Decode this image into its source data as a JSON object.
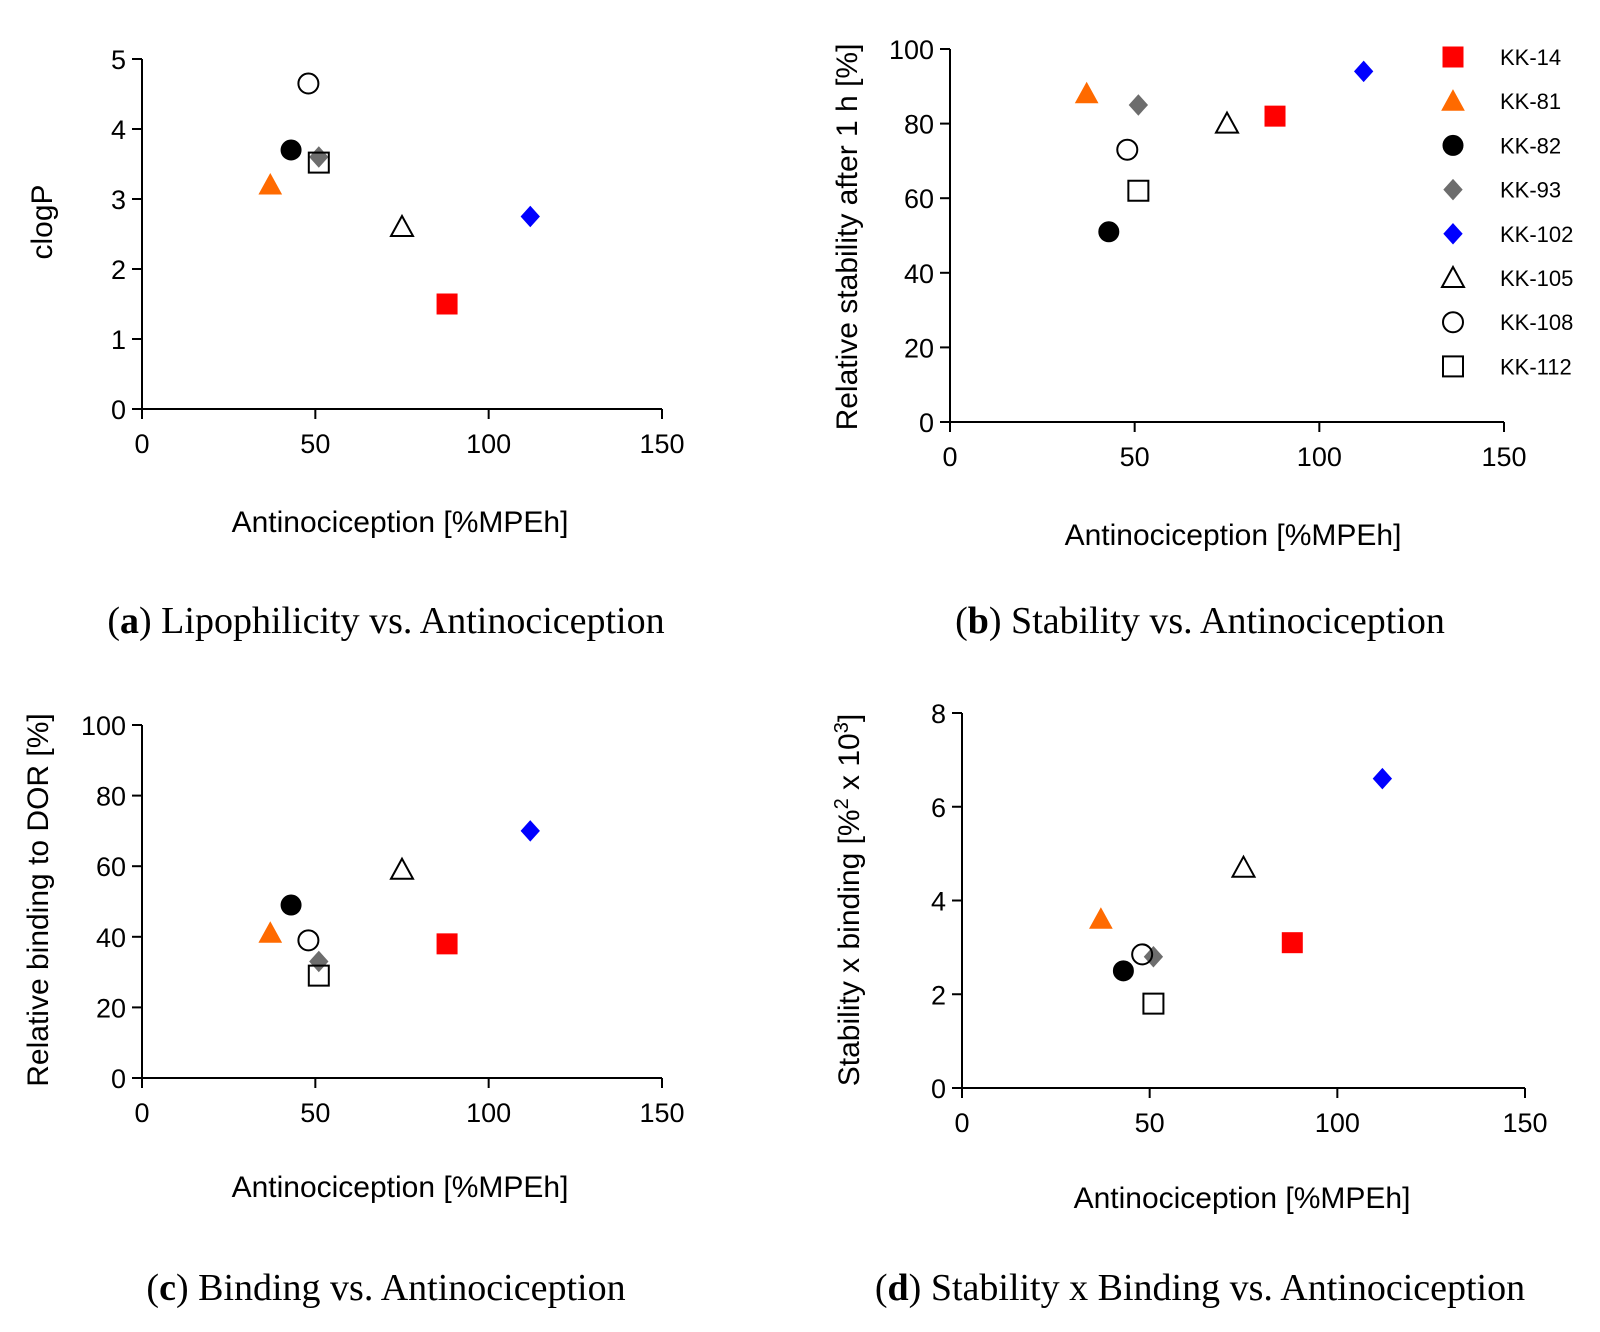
{
  "series": [
    {
      "key": "KK-14",
      "name": "KK-14",
      "marker": "square",
      "fill": "#ff0000",
      "stroke": "#ff0000"
    },
    {
      "key": "KK-81",
      "name": "KK-81",
      "marker": "triangle",
      "fill": "#ff6a00",
      "stroke": "#ff6a00"
    },
    {
      "key": "KK-82",
      "name": "KK-82",
      "marker": "circle",
      "fill": "#000000",
      "stroke": "#000000"
    },
    {
      "key": "KK-93",
      "name": "KK-93",
      "marker": "diamond",
      "fill": "#6d6d6d",
      "stroke": "#6d6d6d"
    },
    {
      "key": "KK-102",
      "name": "KK-102",
      "marker": "diamond",
      "fill": "#0000ff",
      "stroke": "#0000ff"
    },
    {
      "key": "KK-105",
      "name": "KK-105",
      "marker": "triangle",
      "fill": "none",
      "stroke": "#000000"
    },
    {
      "key": "KK-108",
      "name": "KK-108",
      "marker": "circle",
      "fill": "none",
      "stroke": "#000000"
    },
    {
      "key": "KK-112",
      "name": "KK-112",
      "marker": "square",
      "fill": "none",
      "stroke": "#000000"
    }
  ],
  "chart_data": [
    {
      "id": "a",
      "type": "scatter",
      "caption_letter": "a",
      "caption_text": ") Lipophilicity vs. Antinociception",
      "xlabel": "Antinociception [%MPEh]",
      "ylabel": "clogP",
      "xlim": [
        0,
        150
      ],
      "ylim": [
        0,
        5
      ],
      "xticks": [
        "0",
        "50",
        "100",
        "150"
      ],
      "yticks": [
        "0",
        "1",
        "2",
        "3",
        "4",
        "5"
      ],
      "points": {
        "KK-14": [
          88,
          1.5
        ],
        "KK-81": [
          37,
          3.2
        ],
        "KK-82": [
          43,
          3.7
        ],
        "KK-93": [
          51,
          3.6
        ],
        "KK-102": [
          112,
          2.75
        ],
        "KK-105": [
          75,
          2.6
        ],
        "KK-108": [
          48,
          4.65
        ],
        "KK-112": [
          51,
          3.52
        ]
      }
    },
    {
      "id": "b",
      "type": "scatter",
      "caption_letter": "b",
      "caption_text": ") Stability vs. Antinociception",
      "xlabel": "Antinociception [%MPEh]",
      "ylabel": "Relative stability after 1 h [%]",
      "xlim": [
        0,
        150
      ],
      "ylim": [
        0,
        100
      ],
      "xticks": [
        "0",
        "50",
        "100",
        "150"
      ],
      "yticks": [
        "0",
        "20",
        "40",
        "60",
        "80",
        "100"
      ],
      "legend": true,
      "points": {
        "KK-14": [
          88,
          82
        ],
        "KK-81": [
          37,
          88
        ],
        "KK-82": [
          43,
          51
        ],
        "KK-93": [
          51,
          85
        ],
        "KK-102": [
          112,
          94
        ],
        "KK-105": [
          75,
          80
        ],
        "KK-108": [
          48,
          73
        ],
        "KK-112": [
          51,
          62
        ]
      }
    },
    {
      "id": "c",
      "type": "scatter",
      "caption_letter": "c",
      "caption_text": ") Binding vs. Antinociception",
      "xlabel": "Antinociception [%MPEh]",
      "ylabel": "Relative binding to DOR [%]",
      "xlim": [
        0,
        150
      ],
      "ylim": [
        0,
        100
      ],
      "xticks": [
        "0",
        "50",
        "100",
        "150"
      ],
      "yticks": [
        "0",
        "20",
        "40",
        "60",
        "80",
        "100"
      ],
      "points": {
        "KK-14": [
          88,
          38
        ],
        "KK-81": [
          37,
          41
        ],
        "KK-82": [
          43,
          49
        ],
        "KK-93": [
          51,
          33
        ],
        "KK-102": [
          112,
          70
        ],
        "KK-105": [
          75,
          59
        ],
        "KK-108": [
          48,
          39
        ],
        "KK-112": [
          51,
          29
        ]
      }
    },
    {
      "id": "d",
      "type": "scatter",
      "caption_letter": "d",
      "caption_text": ") Stability x Binding vs. Antinociception",
      "xlabel": "Antinociception [%MPEh]",
      "ylabel": "Stability x binding [%",
      "ylabel_sup1": "2",
      "ylabel_mid": " x 10",
      "ylabel_sup2": "3",
      "ylabel_end": "]",
      "xlim": [
        0,
        150
      ],
      "ylim": [
        0,
        8
      ],
      "xticks": [
        "0",
        "50",
        "100",
        "150"
      ],
      "yticks": [
        "0",
        "2",
        "4",
        "6",
        "8"
      ],
      "points": {
        "KK-14": [
          88,
          3.1
        ],
        "KK-81": [
          37,
          3.6
        ],
        "KK-82": [
          43,
          2.5
        ],
        "KK-93": [
          51,
          2.8
        ],
        "KK-102": [
          112,
          6.6
        ],
        "KK-105": [
          75,
          4.7
        ],
        "KK-108": [
          48,
          2.85
        ],
        "KK-112": [
          51,
          1.8
        ]
      }
    }
  ]
}
